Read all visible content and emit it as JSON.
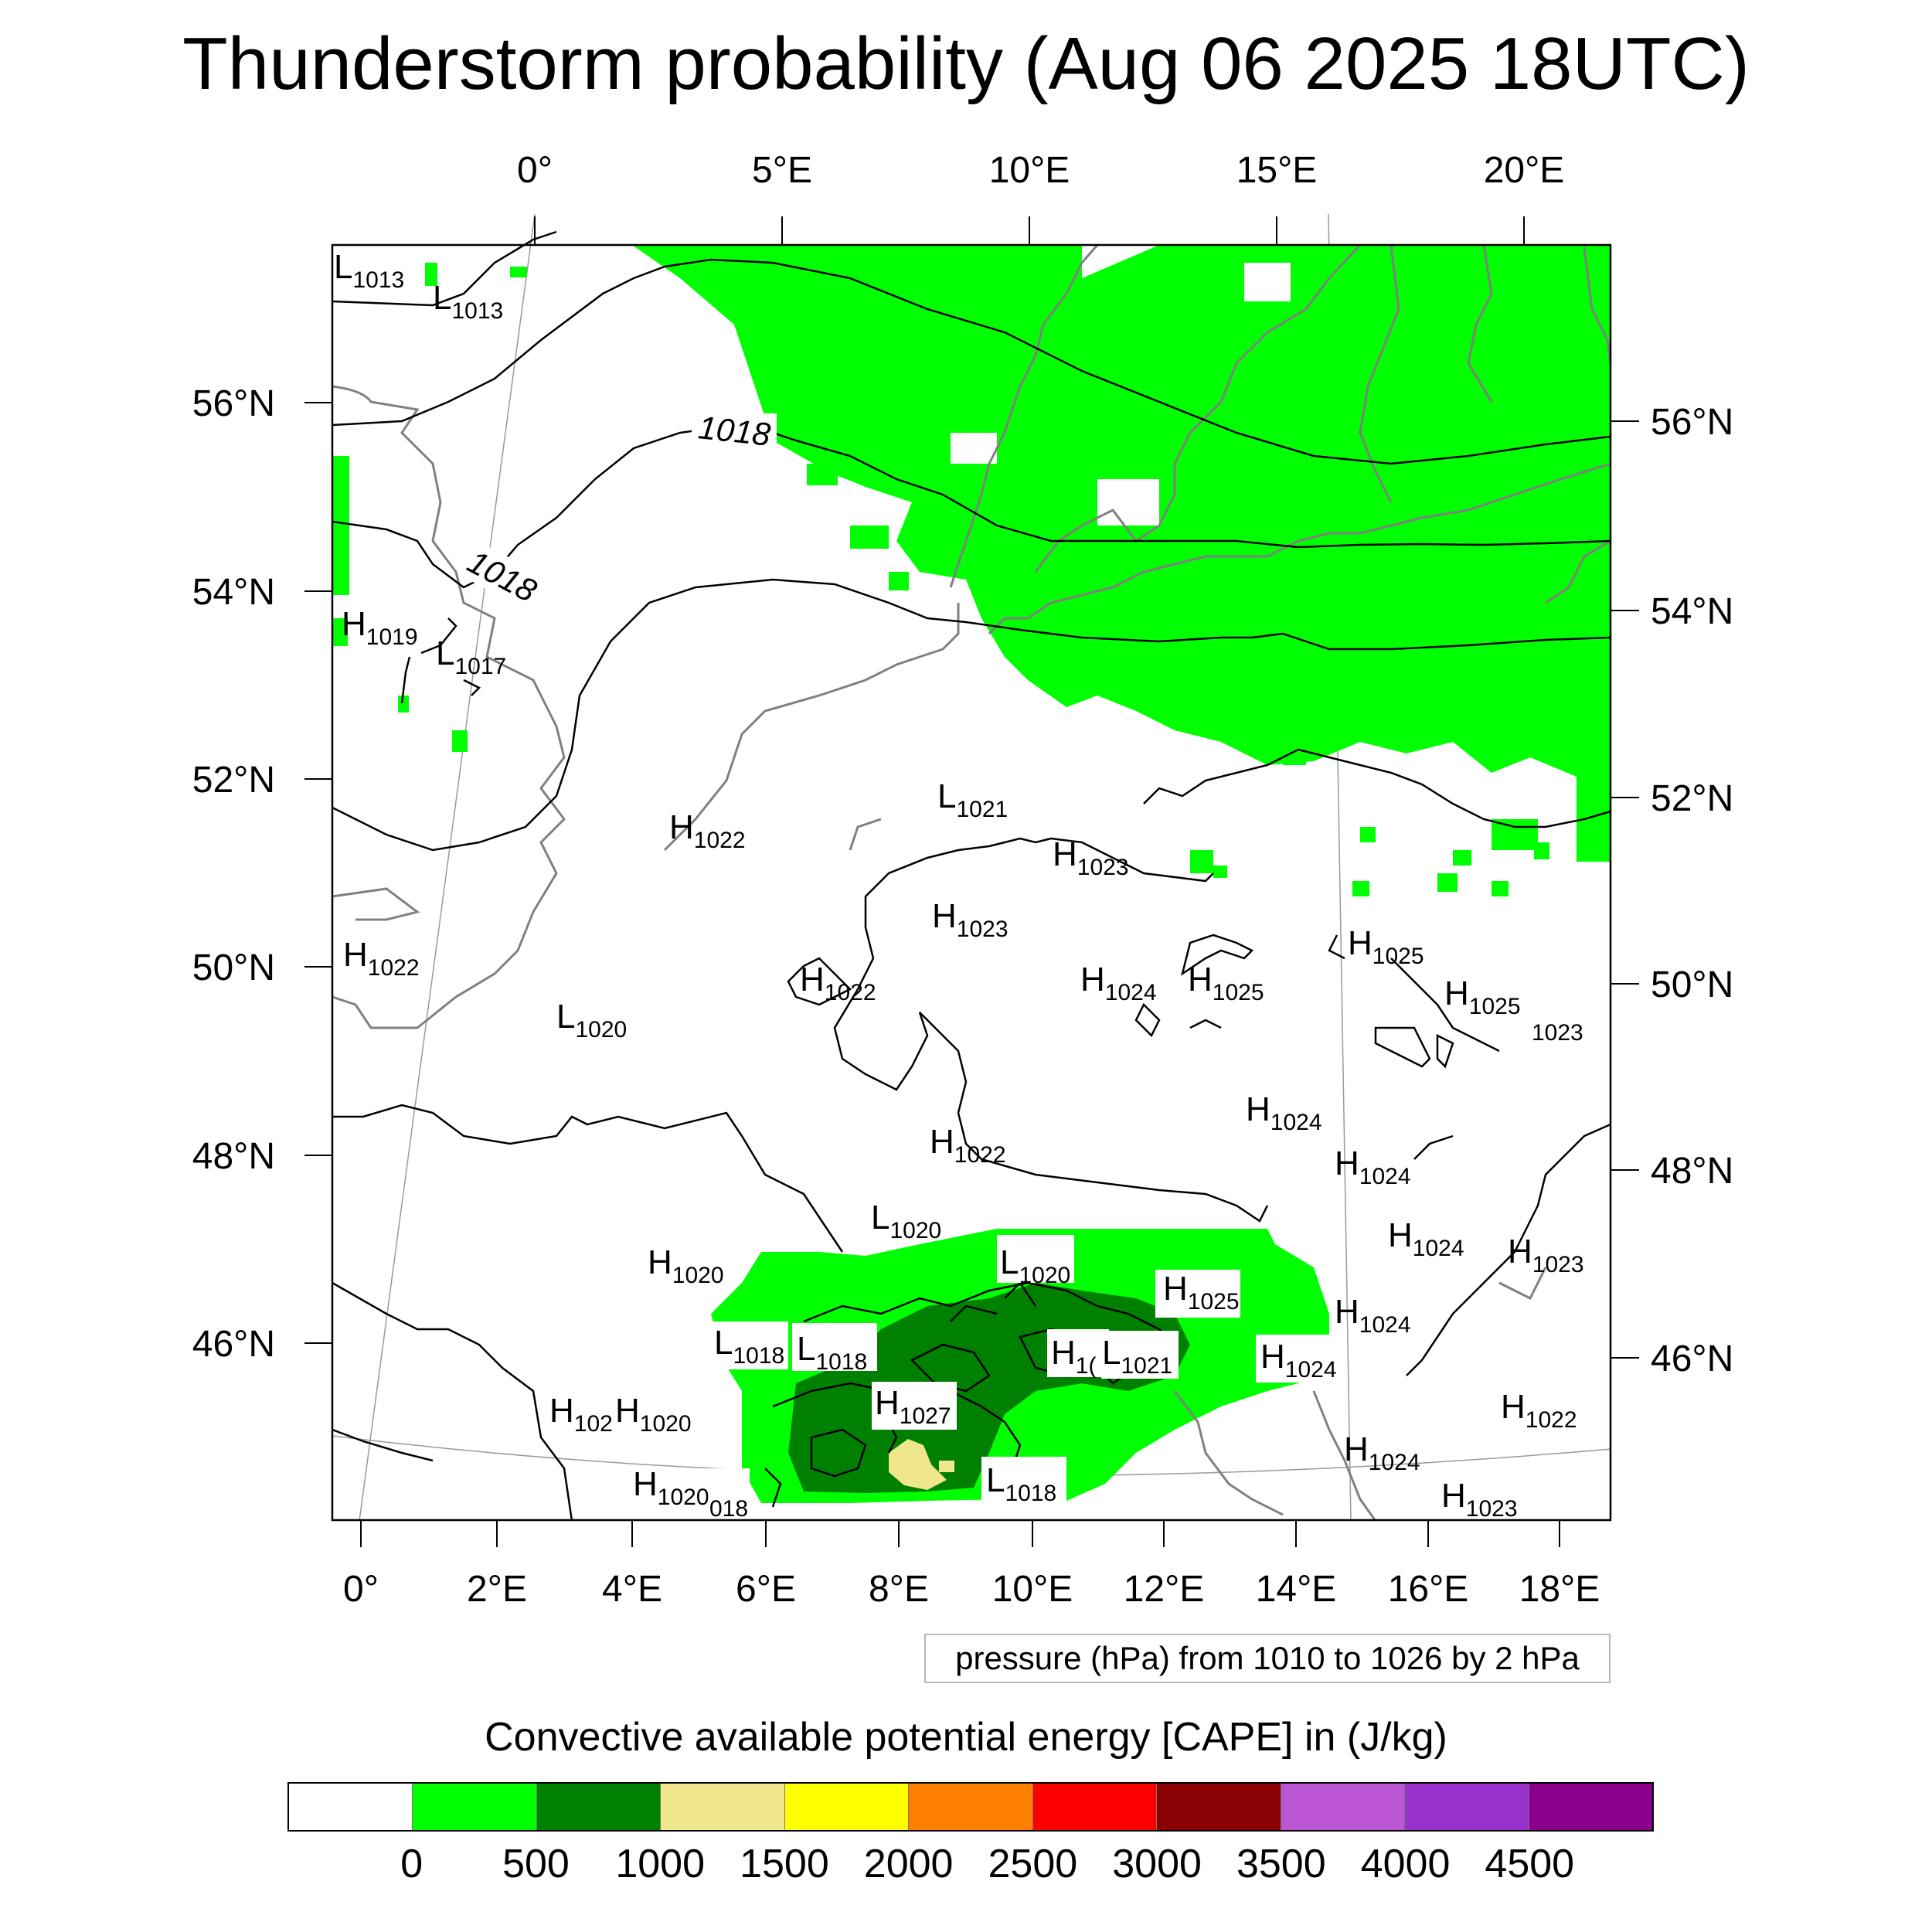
{
  "title": "Thunderstorm probability (Aug 06 2025 18UTC)",
  "map": {
    "top_lon_labels": [
      "0°",
      "5°E",
      "10°E",
      "15°E",
      "20°E"
    ],
    "bottom_lon_labels": [
      "0°",
      "2°E",
      "4°E",
      "6°E",
      "8°E",
      "10°E",
      "12°E",
      "14°E",
      "16°E",
      "18°E"
    ],
    "left_lat_labels": [
      "56°N",
      "54°N",
      "52°N",
      "50°N",
      "48°N",
      "46°N"
    ],
    "right_lat_labels": [
      "56°N",
      "54°N",
      "52°N",
      "50°N",
      "48°N",
      "46°N"
    ],
    "isobar_labels": [
      "1018",
      "1018"
    ],
    "pressure_centers": [
      {
        "t": "L",
        "v": "1013"
      },
      {
        "t": "L",
        "v": "1013"
      },
      {
        "t": "H",
        "v": "1019"
      },
      {
        "t": "L",
        "v": "1017"
      },
      {
        "t": "L",
        "v": "1021"
      },
      {
        "t": "H",
        "v": "1022"
      },
      {
        "t": "H",
        "v": "1023"
      },
      {
        "t": "H",
        "v": "1023"
      },
      {
        "t": "H",
        "v": "1022"
      },
      {
        "t": "L",
        "v": "1020"
      },
      {
        "t": "H",
        "v": "1022"
      },
      {
        "t": "H",
        "v": "1024"
      },
      {
        "t": "H",
        "v": "1025"
      },
      {
        "t": "H",
        "v": "1025"
      },
      {
        "t": "H",
        "v": "1025"
      },
      {
        "t": "",
        "v": "1023"
      },
      {
        "t": "H",
        "v": "1024"
      },
      {
        "t": "H",
        "v": "1022"
      },
      {
        "t": "H",
        "v": "1024"
      },
      {
        "t": "L",
        "v": "1020"
      },
      {
        "t": "H",
        "v": "1024"
      },
      {
        "t": "H",
        "v": "1023"
      },
      {
        "t": "H",
        "v": "1020"
      },
      {
        "t": "L",
        "v": "1020"
      },
      {
        "t": "H",
        "v": "1025"
      },
      {
        "t": "H",
        "v": "1024"
      },
      {
        "t": "L",
        "v": "1018"
      },
      {
        "t": "L",
        "v": "1018"
      },
      {
        "t": "H",
        "v": "1("
      },
      {
        "t": "L",
        "v": "1021"
      },
      {
        "t": "H",
        "v": "1024"
      },
      {
        "t": "H",
        "v": "1027"
      },
      {
        "t": "H",
        "v": "102"
      },
      {
        "t": "H",
        "v": "1020"
      },
      {
        "t": "H",
        "v": "1022"
      },
      {
        "t": "H",
        "v": "1024"
      },
      {
        "t": "L",
        "v": "1018"
      },
      {
        "t": "H",
        "v": "1020"
      },
      {
        "t": "",
        "v": "018"
      },
      {
        "t": "H",
        "v": "1023"
      }
    ]
  },
  "pressure_note": "pressure (hPa) from 1010 to 1026 by 2 hPa",
  "colorbar": {
    "title": "Convective available potential energy [CAPE] in (J/kg)",
    "colors": [
      "#ffffff",
      "#00ff00",
      "#008000",
      "#f0e68c",
      "#ffff00",
      "#ff8000",
      "#ff0000",
      "#8b0000",
      "#ba55d3",
      "#9932cc",
      "#8b008b"
    ],
    "ticks": [
      "0",
      "500",
      "1000",
      "1500",
      "2000",
      "2500",
      "3000",
      "3500",
      "4000",
      "4500"
    ]
  }
}
